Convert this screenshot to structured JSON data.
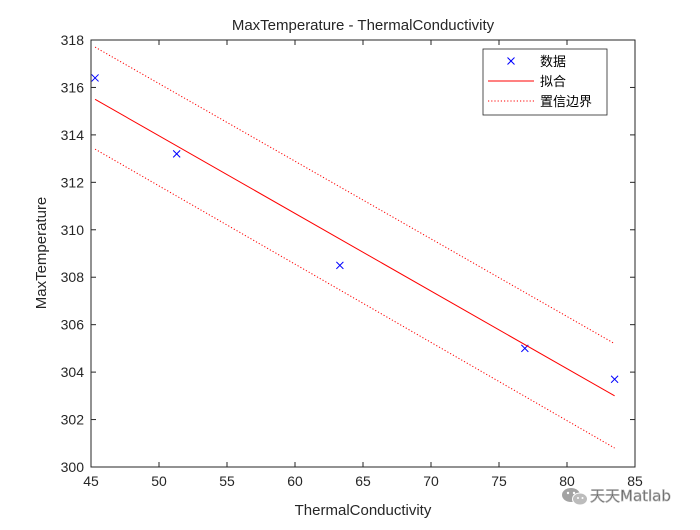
{
  "chart_data": {
    "type": "scatter",
    "title": "MaxTemperature - ThermalConductivity",
    "xlabel": "ThermalConductivity",
    "ylabel": "MaxTemperature",
    "xlim": [
      45,
      85
    ],
    "ylim": [
      300,
      318
    ],
    "xticks": [
      45,
      50,
      55,
      60,
      65,
      70,
      75,
      80,
      85
    ],
    "yticks": [
      300,
      302,
      304,
      306,
      308,
      310,
      312,
      314,
      316,
      318
    ],
    "grid": false,
    "legend_position": "top-right",
    "series": [
      {
        "name": "数据",
        "kind": "markers",
        "marker": "x",
        "color": "#0000ff",
        "points": [
          {
            "x": 45.3,
            "y": 316.4
          },
          {
            "x": 51.3,
            "y": 313.2
          },
          {
            "x": 63.3,
            "y": 308.5
          },
          {
            "x": 76.9,
            "y": 305.0
          },
          {
            "x": 83.5,
            "y": 303.7
          }
        ]
      },
      {
        "name": "拟合",
        "kind": "line",
        "style": "solid",
        "color": "#ff0000",
        "points": [
          {
            "x": 45.3,
            "y": 315.5
          },
          {
            "x": 83.5,
            "y": 303.0
          }
        ]
      },
      {
        "name": "置信边界",
        "kind": "line",
        "style": "dotted",
        "color": "#ff0000",
        "bounds": [
          {
            "part": "upper",
            "points": [
              {
                "x": 45.3,
                "y": 317.7
              },
              {
                "x": 83.5,
                "y": 305.2
              }
            ]
          },
          {
            "part": "lower",
            "points": [
              {
                "x": 45.3,
                "y": 313.4
              },
              {
                "x": 83.5,
                "y": 300.8
              }
            ]
          }
        ]
      }
    ]
  },
  "watermark": {
    "text": "天天Matlab",
    "icon": "wechat-icon"
  }
}
